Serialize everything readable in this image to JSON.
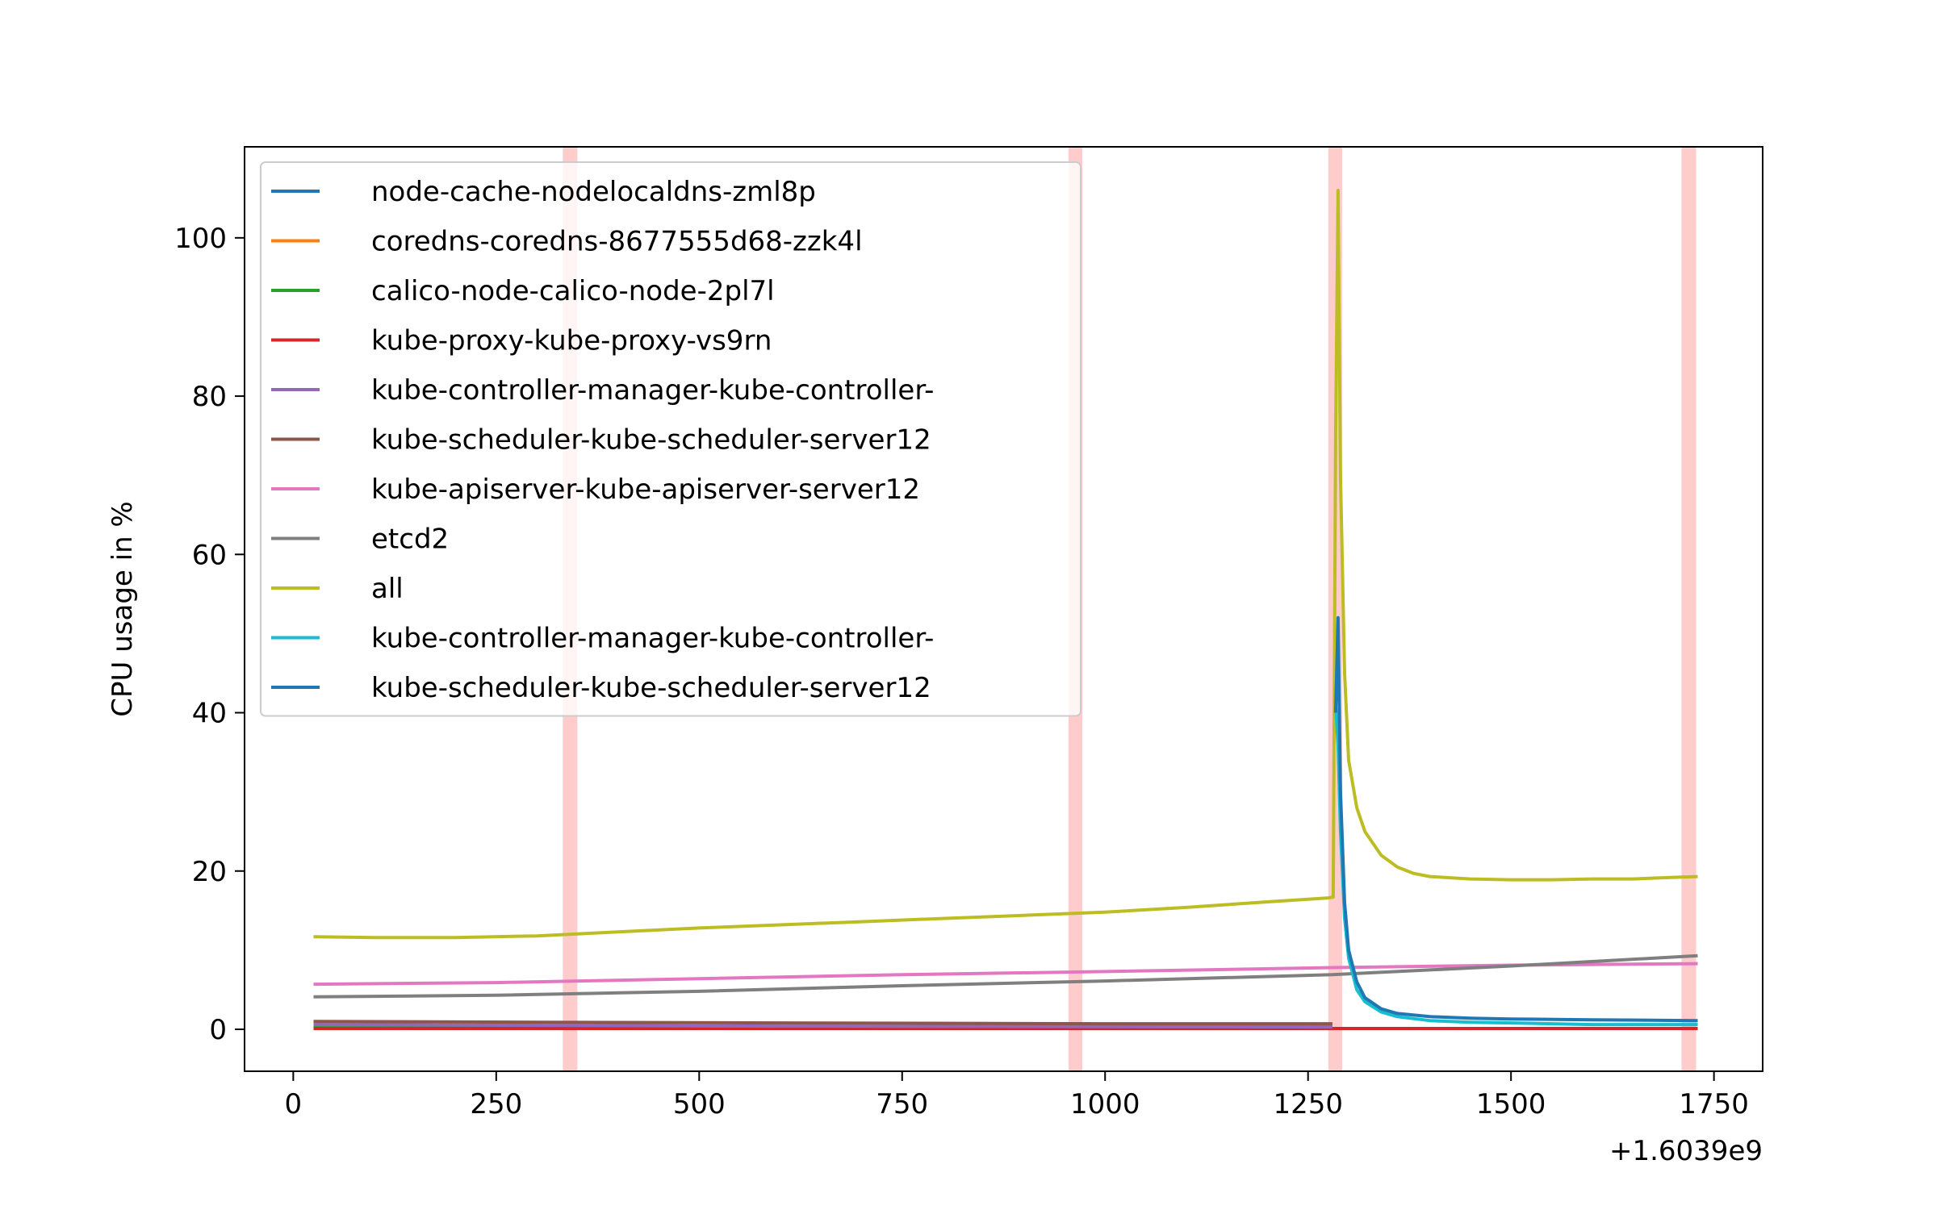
{
  "chart_data": {
    "type": "line",
    "title": "",
    "xlabel": "",
    "ylabel": "CPU usage in %",
    "x_offset_label": "+1.6039e9",
    "xlim": [
      -60,
      1810
    ],
    "ylim": [
      -5.3,
      111.5
    ],
    "xticks": [
      0,
      250,
      500,
      750,
      1000,
      1250,
      1500,
      1750
    ],
    "xtick_labels": [
      "0",
      "250",
      "500",
      "750",
      "1000",
      "1250",
      "1500",
      "1750"
    ],
    "yticks": [
      0,
      20,
      40,
      60,
      80,
      100
    ],
    "ytick_labels": [
      "0",
      "20",
      "40",
      "60",
      "80",
      "100"
    ],
    "grid": false,
    "legend_position": "upper-left",
    "highlight_bands": [
      {
        "x0": 332,
        "x1": 350,
        "color": "#ffcccc"
      },
      {
        "x0": 955,
        "x1": 972,
        "color": "#ffcccc"
      },
      {
        "x0": 1275,
        "x1": 1292,
        "color": "#ffcccc"
      },
      {
        "x0": 1710,
        "x1": 1728,
        "color": "#ffcccc"
      }
    ],
    "series": [
      {
        "name": "node-cache-nodelocaldns-zml8p",
        "color": "#1f77b4",
        "x": [
          25,
          600,
          1280
        ],
        "y": [
          0.3,
          0.3,
          0.3
        ]
      },
      {
        "name": "coredns-coredns-8677555d68-zzk4l",
        "color": "#ff7f0e",
        "x": [
          25,
          600,
          1280
        ],
        "y": [
          0.2,
          0.2,
          0.2
        ]
      },
      {
        "name": "calico-node-calico-node-2pl7l",
        "color": "#2ca02c",
        "x": [
          25,
          600,
          1280
        ],
        "y": [
          0.3,
          0.3,
          0.3
        ]
      },
      {
        "name": "kube-proxy-kube-proxy-vs9rn",
        "color": "#d62728",
        "x": [
          25,
          600,
          1280,
          1500,
          1730
        ],
        "y": [
          0.1,
          0.1,
          0.1,
          0.1,
          0.1
        ]
      },
      {
        "name": "kube-controller-manager-kube-controller-",
        "color": "#9467bd",
        "x": [
          25,
          600,
          1280
        ],
        "y": [
          0.6,
          0.4,
          0.3
        ]
      },
      {
        "name": "kube-scheduler-kube-scheduler-server12",
        "color": "#8c564b",
        "x": [
          25,
          300,
          600,
          1000,
          1280
        ],
        "y": [
          1.0,
          0.9,
          0.8,
          0.7,
          0.7
        ]
      },
      {
        "name": "kube-apiserver-kube-apiserver-server12",
        "color": "#e377c2",
        "x": [
          25,
          250,
          500,
          750,
          1000,
          1280,
          1500,
          1730
        ],
        "y": [
          5.7,
          5.9,
          6.4,
          6.9,
          7.3,
          7.8,
          8.1,
          8.3
        ]
      },
      {
        "name": "etcd2",
        "color": "#7f7f7f",
        "x": [
          25,
          250,
          500,
          750,
          1000,
          1280,
          1500,
          1730
        ],
        "y": [
          4.1,
          4.3,
          4.8,
          5.5,
          6.1,
          6.9,
          8.0,
          9.3
        ]
      },
      {
        "name": "all",
        "color": "#bcbd22",
        "x": [
          25,
          100,
          200,
          300,
          400,
          500,
          600,
          700,
          800,
          900,
          1000,
          1100,
          1200,
          1275,
          1281,
          1284,
          1287,
          1290,
          1295,
          1300,
          1310,
          1320,
          1340,
          1360,
          1380,
          1400,
          1450,
          1500,
          1550,
          1600,
          1650,
          1700,
          1730
        ],
        "y": [
          11.7,
          11.6,
          11.6,
          11.8,
          12.3,
          12.8,
          13.2,
          13.6,
          14.0,
          14.4,
          14.8,
          15.4,
          16.1,
          16.6,
          16.7,
          75.0,
          106.0,
          70.0,
          45.0,
          34.0,
          28.0,
          25.0,
          22.0,
          20.5,
          19.7,
          19.3,
          19.0,
          18.9,
          18.9,
          19.0,
          19.0,
          19.2,
          19.3
        ]
      },
      {
        "name": "kube-controller-manager-kube-controller-",
        "color": "#17becf",
        "x": [
          1284,
          1287,
          1290,
          1295,
          1300,
          1310,
          1320,
          1340,
          1360,
          1400,
          1450,
          1500,
          1600,
          1730
        ],
        "y": [
          41.0,
          36.0,
          25.0,
          14.0,
          9.0,
          5.0,
          3.5,
          2.2,
          1.6,
          1.1,
          0.9,
          0.8,
          0.6,
          0.6
        ]
      },
      {
        "name": "kube-scheduler-kube-scheduler-server12",
        "color": "#1f77b4",
        "x": [
          1284,
          1287,
          1290,
          1295,
          1300,
          1310,
          1320,
          1340,
          1360,
          1400,
          1450,
          1500,
          1600,
          1730
        ],
        "y": [
          40.0,
          52.0,
          30.0,
          16.0,
          10.0,
          6.0,
          4.0,
          2.6,
          2.0,
          1.6,
          1.4,
          1.3,
          1.2,
          1.1
        ]
      }
    ]
  }
}
